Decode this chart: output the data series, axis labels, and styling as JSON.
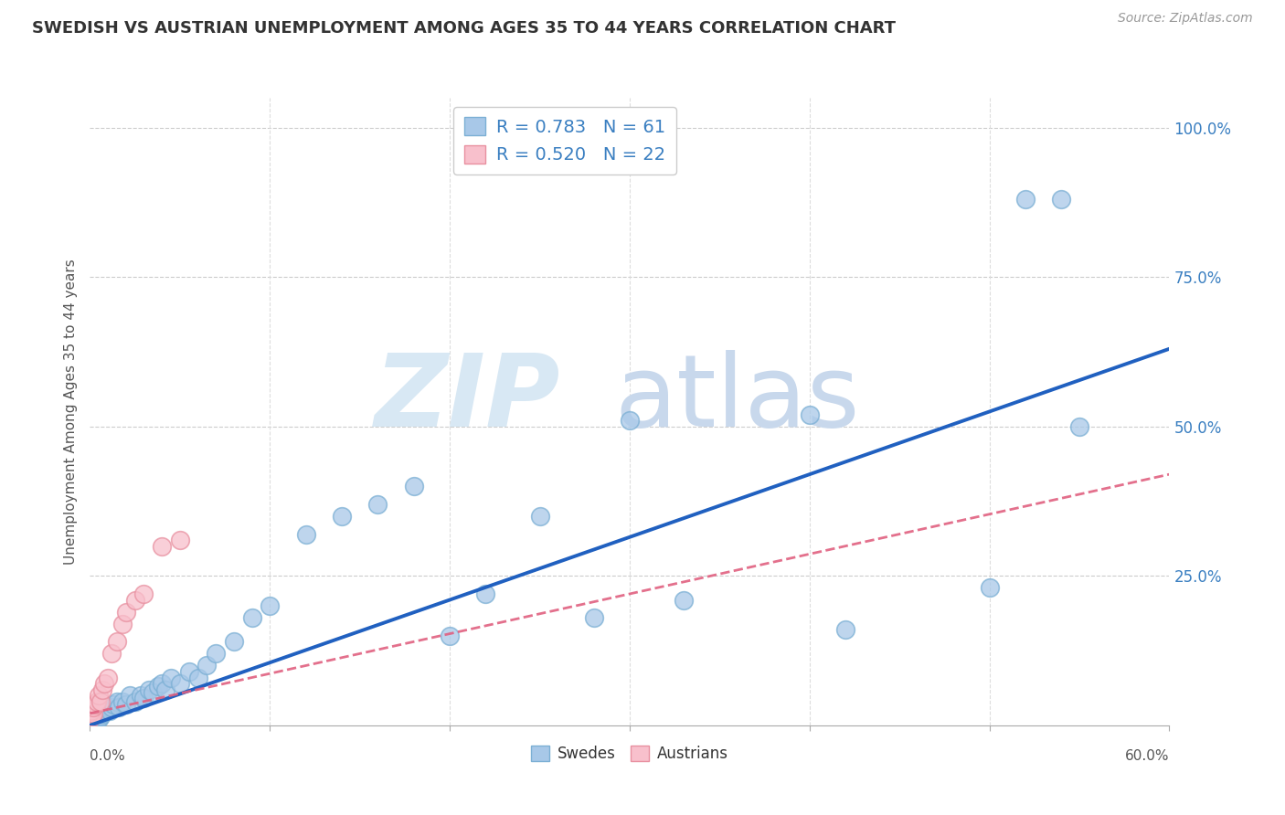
{
  "title": "SWEDISH VS AUSTRIAN UNEMPLOYMENT AMONG AGES 35 TO 44 YEARS CORRELATION CHART",
  "source": "Source: ZipAtlas.com",
  "ylabel": "Unemployment Among Ages 35 to 44 years",
  "ytick_labels": [
    "",
    "25.0%",
    "50.0%",
    "75.0%",
    "100.0%"
  ],
  "ytick_vals": [
    0.0,
    0.25,
    0.5,
    0.75,
    1.0
  ],
  "xlim": [
    0.0,
    0.6
  ],
  "ylim": [
    0.0,
    1.05
  ],
  "swedes_color_face": "#a8c8e8",
  "swedes_color_edge": "#7bafd4",
  "austrians_color_face": "#f8c0cc",
  "austrians_color_edge": "#e890a0",
  "swedes_line_color": "#2060c0",
  "austrians_line_color": "#e06080",
  "legend_label_1": "R = 0.783   N = 61",
  "legend_label_2": "R = 0.520   N = 22",
  "swedes_line_x": [
    0.0,
    0.6
  ],
  "swedes_line_y": [
    0.0,
    0.63
  ],
  "austrians_line_x": [
    0.0,
    0.6
  ],
  "austrians_line_y": [
    0.02,
    0.42
  ],
  "swedes_x": [
    0.0,
    0.0,
    0.001,
    0.001,
    0.001,
    0.002,
    0.002,
    0.003,
    0.003,
    0.004,
    0.004,
    0.005,
    0.005,
    0.006,
    0.006,
    0.007,
    0.008,
    0.008,
    0.009,
    0.01,
    0.011,
    0.012,
    0.013,
    0.015,
    0.016,
    0.018,
    0.02,
    0.022,
    0.025,
    0.028,
    0.03,
    0.033,
    0.035,
    0.038,
    0.04,
    0.042,
    0.045,
    0.05,
    0.055,
    0.06,
    0.065,
    0.07,
    0.08,
    0.09,
    0.1,
    0.12,
    0.14,
    0.16,
    0.18,
    0.2,
    0.22,
    0.25,
    0.28,
    0.3,
    0.33,
    0.4,
    0.42,
    0.5,
    0.52,
    0.54,
    0.55
  ],
  "swedes_y": [
    0.005,
    0.01,
    0.005,
    0.01,
    0.015,
    0.01,
    0.02,
    0.01,
    0.015,
    0.015,
    0.02,
    0.01,
    0.02,
    0.015,
    0.02,
    0.02,
    0.025,
    0.03,
    0.025,
    0.03,
    0.025,
    0.03,
    0.035,
    0.04,
    0.03,
    0.04,
    0.035,
    0.05,
    0.04,
    0.05,
    0.045,
    0.06,
    0.055,
    0.065,
    0.07,
    0.06,
    0.08,
    0.07,
    0.09,
    0.08,
    0.1,
    0.12,
    0.14,
    0.18,
    0.2,
    0.32,
    0.35,
    0.37,
    0.4,
    0.15,
    0.22,
    0.35,
    0.18,
    0.51,
    0.21,
    0.52,
    0.16,
    0.23,
    0.88,
    0.88,
    0.5
  ],
  "austrians_x": [
    0.0,
    0.0,
    0.0,
    0.001,
    0.001,
    0.002,
    0.002,
    0.003,
    0.004,
    0.005,
    0.006,
    0.007,
    0.008,
    0.01,
    0.012,
    0.015,
    0.018,
    0.02,
    0.025,
    0.03,
    0.04,
    0.05
  ],
  "austrians_y": [
    0.01,
    0.02,
    0.03,
    0.015,
    0.025,
    0.02,
    0.03,
    0.035,
    0.04,
    0.05,
    0.04,
    0.06,
    0.07,
    0.08,
    0.12,
    0.14,
    0.17,
    0.19,
    0.21,
    0.22,
    0.3,
    0.31
  ]
}
